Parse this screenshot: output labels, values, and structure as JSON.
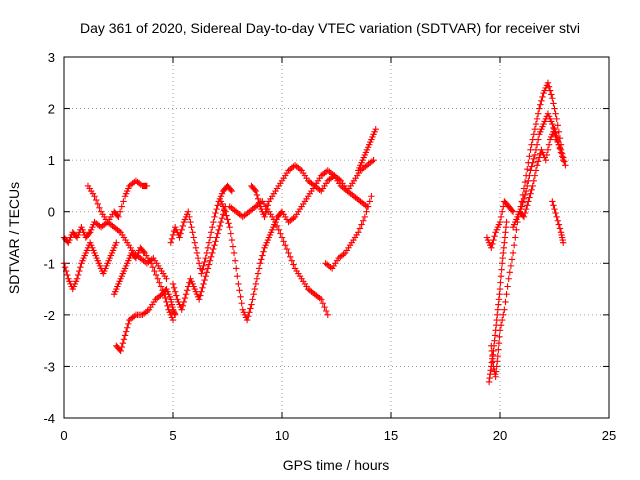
{
  "chart_data": {
    "type": "scatter",
    "title": "Day 361 of 2020, Sidereal Day-to-day VTEC variation (SDTVAR) for receiver stvi",
    "xlabel": "GPS time / hours",
    "ylabel": "SDTVAR / TECUs",
    "xlim": [
      0,
      25
    ],
    "ylim": [
      -4,
      3
    ],
    "xticks": [
      "0",
      "5",
      "10",
      "15",
      "20",
      "25"
    ],
    "yticks": [
      "3",
      "2",
      "1",
      "0",
      "-1",
      "-2",
      "-3",
      "-4"
    ],
    "grid": true,
    "marker": "+",
    "color": "#ff0000",
    "series": [
      {
        "name": "s1",
        "x": [
          0.0,
          0.2,
          0.4,
          0.6,
          0.8,
          1.0,
          1.2,
          1.4,
          1.7,
          2.0,
          2.3,
          2.5,
          2.8,
          3.0,
          3.3,
          3.6,
          3.8
        ],
        "y": [
          -0.5,
          -0.6,
          -0.4,
          -0.5,
          -0.3,
          -0.5,
          -0.4,
          -0.2,
          -0.3,
          -0.2,
          0.0,
          -0.1,
          0.3,
          0.5,
          0.6,
          0.5,
          0.5
        ]
      },
      {
        "name": "s2",
        "x": [
          0.0,
          0.2,
          0.4,
          0.6,
          0.8,
          1.0,
          1.2,
          1.4,
          1.6,
          1.8,
          2.0,
          2.2,
          2.4
        ],
        "y": [
          -1.0,
          -1.3,
          -1.5,
          -1.3,
          -1.0,
          -0.8,
          -0.6,
          -0.8,
          -1.0,
          -1.2,
          -1.0,
          -0.8,
          -0.6
        ]
      },
      {
        "name": "s3",
        "x": [
          1.1,
          1.4,
          1.7,
          2.0,
          2.3,
          2.6,
          2.9,
          3.2,
          3.5,
          3.8,
          4.1,
          4.4,
          4.7
        ],
        "y": [
          0.5,
          0.3,
          0.0,
          -0.2,
          -0.3,
          -0.4,
          -0.6,
          -0.8,
          -0.9,
          -1.0,
          -0.9,
          -1.1,
          -1.3
        ]
      },
      {
        "name": "s4",
        "x": [
          2.4,
          2.6,
          2.8,
          3.0,
          3.3,
          3.6,
          3.9,
          4.2,
          4.5,
          4.7,
          4.9,
          5.0,
          5.1
        ],
        "y": [
          -2.6,
          -2.7,
          -2.4,
          -2.1,
          -2.0,
          -2.0,
          -1.9,
          -1.7,
          -1.6,
          -1.5,
          -1.7,
          -1.9,
          -2.0
        ]
      },
      {
        "name": "s5",
        "x": [
          2.3,
          2.5,
          2.7,
          2.9,
          3.1,
          3.3,
          3.5,
          3.7,
          4.0,
          4.3,
          4.6,
          4.8,
          5.0
        ],
        "y": [
          -1.6,
          -1.4,
          -1.2,
          -1.0,
          -0.8,
          -0.9,
          -0.7,
          -0.8,
          -1.0,
          -1.3,
          -1.6,
          -1.9,
          -2.1
        ]
      },
      {
        "name": "s6",
        "x": [
          4.9,
          5.1,
          5.3,
          5.5,
          5.7,
          5.9,
          6.1,
          6.3,
          6.5,
          6.7,
          6.9,
          7.1,
          7.3,
          7.5,
          7.7
        ],
        "y": [
          -0.6,
          -0.3,
          -0.5,
          -0.2,
          0.0,
          -0.4,
          -0.8,
          -1.2,
          -0.9,
          -0.5,
          -0.1,
          0.2,
          0.4,
          0.5,
          0.4
        ]
      },
      {
        "name": "s7",
        "x": [
          5.0,
          5.2,
          5.4,
          5.6,
          5.8,
          6.0,
          6.2,
          6.4,
          6.6,
          6.8,
          7.0,
          7.2,
          7.4
        ],
        "y": [
          -1.4,
          -1.7,
          -1.9,
          -1.6,
          -1.3,
          -1.5,
          -1.7,
          -1.4,
          -1.1,
          -0.8,
          -0.5,
          -0.2,
          0.1
        ]
      },
      {
        "name": "s8",
        "x": [
          7.2,
          7.4,
          7.6,
          7.8,
          8.0,
          8.2,
          8.4,
          8.6,
          8.8,
          9.0,
          9.2,
          9.4,
          9.6,
          9.8,
          10.0
        ],
        "y": [
          0.2,
          0.0,
          -0.3,
          -0.8,
          -1.4,
          -1.9,
          -2.1,
          -1.8,
          -1.4,
          -1.0,
          -0.7,
          -0.5,
          -0.3,
          -0.1,
          0.0
        ]
      },
      {
        "name": "s9",
        "x": [
          7.6,
          7.9,
          8.2,
          8.5,
          8.8,
          9.1,
          9.4,
          9.7,
          10.0,
          10.3,
          10.6,
          10.9,
          11.2,
          11.5,
          11.8,
          12.1
        ],
        "y": [
          0.1,
          0.0,
          -0.1,
          0.0,
          0.1,
          0.2,
          0.0,
          -0.2,
          -0.5,
          -0.8,
          -1.1,
          -1.3,
          -1.5,
          -1.6,
          -1.7,
          -2.0
        ]
      },
      {
        "name": "s10",
        "x": [
          8.6,
          8.8,
          9.0,
          9.2,
          9.4,
          9.7,
          10.0,
          10.3,
          10.6,
          10.9,
          11.2,
          11.5,
          11.8,
          12.1,
          12.4,
          12.7,
          13.0,
          13.3,
          13.6,
          13.9
        ],
        "y": [
          0.5,
          0.4,
          0.1,
          -0.1,
          0.2,
          0.4,
          0.6,
          0.8,
          0.9,
          0.8,
          0.6,
          0.5,
          0.4,
          0.6,
          0.7,
          0.6,
          0.4,
          0.3,
          0.2,
          0.1
        ]
      },
      {
        "name": "s11",
        "x": [
          10.0,
          10.3,
          10.6,
          10.9,
          11.2,
          11.5,
          11.8,
          12.1,
          12.4,
          12.7,
          13.0,
          13.3,
          13.6,
          13.9,
          14.2
        ],
        "y": [
          0.0,
          -0.2,
          -0.1,
          0.1,
          0.3,
          0.5,
          0.7,
          0.8,
          0.7,
          0.5,
          0.4,
          0.6,
          0.8,
          0.9,
          1.0
        ]
      },
      {
        "name": "s12",
        "x": [
          12.0,
          12.3,
          12.6,
          12.9,
          13.2,
          13.5,
          13.8,
          14.1
        ],
        "y": [
          -1.0,
          -1.1,
          -0.9,
          -0.8,
          -0.6,
          -0.4,
          -0.1,
          0.3
        ]
      },
      {
        "name": "s13",
        "x": [
          13.5,
          13.7,
          13.9,
          14.1,
          14.3
        ],
        "y": [
          0.8,
          1.0,
          1.2,
          1.4,
          1.6
        ]
      },
      {
        "name": "s14",
        "x": [
          19.5,
          19.6,
          19.7,
          19.8,
          19.9,
          20.0,
          20.1,
          20.2,
          20.3
        ],
        "y": [
          -3.3,
          -3.0,
          -2.7,
          -2.3,
          -1.9,
          -1.5,
          -1.0,
          -0.6,
          -0.2
        ]
      },
      {
        "name": "s15",
        "x": [
          19.6,
          19.7,
          19.8,
          19.9,
          20.0,
          20.2,
          20.4,
          20.6,
          20.8,
          21.0,
          21.2,
          21.4,
          21.6,
          21.8,
          22.0,
          22.2,
          22.4,
          22.6,
          22.8
        ],
        "y": [
          -2.6,
          -3.0,
          -3.2,
          -2.8,
          -2.3,
          -1.9,
          -1.3,
          -0.8,
          -0.2,
          0.2,
          0.7,
          1.2,
          1.6,
          2.0,
          2.3,
          2.5,
          2.2,
          1.8,
          1.3
        ]
      },
      {
        "name": "s16",
        "x": [
          20.6,
          20.8,
          21.0,
          21.2,
          21.4,
          21.6,
          21.8,
          22.0,
          22.2,
          22.4,
          22.6,
          22.8,
          23.0
        ],
        "y": [
          -0.3,
          -0.1,
          0.1,
          0.4,
          0.8,
          1.1,
          1.5,
          1.7,
          1.9,
          1.7,
          1.4,
          1.2,
          0.9
        ]
      },
      {
        "name": "s17",
        "x": [
          20.9,
          21.1,
          21.3,
          21.5,
          21.7,
          21.9,
          22.1,
          22.3,
          22.5,
          22.7,
          22.9
        ],
        "y": [
          0.0,
          -0.1,
          0.2,
          0.5,
          0.9,
          1.2,
          1.0,
          1.4,
          1.6,
          1.3,
          1.0
        ]
      },
      {
        "name": "s18",
        "x": [
          19.4,
          19.6,
          19.8,
          20.0,
          20.2,
          20.4,
          20.6
        ],
        "y": [
          -0.5,
          -0.7,
          -0.4,
          -0.2,
          0.2,
          0.1,
          0.0
        ]
      },
      {
        "name": "s19",
        "x": [
          22.4,
          22.6,
          22.8,
          22.9
        ],
        "y": [
          0.2,
          -0.1,
          -0.4,
          -0.6
        ]
      }
    ]
  }
}
